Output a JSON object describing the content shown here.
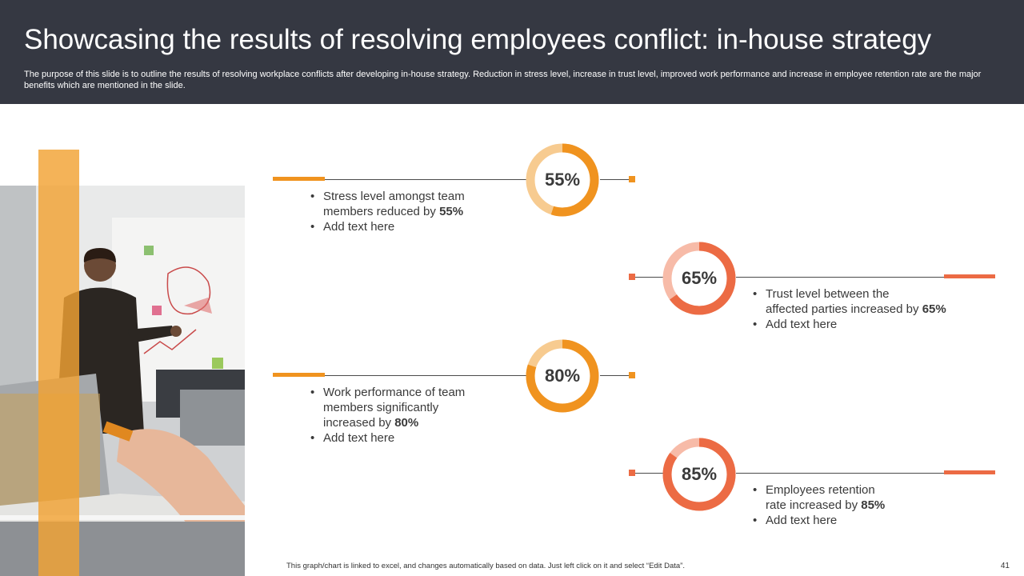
{
  "header": {
    "title": "Showcasing the results of resolving employees conflict: in-house strategy",
    "subtitle": "The purpose of this slide is to outline the results of resolving workplace conflicts after developing in-house strategy. Reduction in stress level, increase in trust level, improved work performance and increase in employee retention rate are the major benefits which are mentioned in the slide."
  },
  "colors": {
    "orange": "#F0931F",
    "coral": "#EC6B44",
    "orange_light": "#F7CB90",
    "coral_light": "#F7BBA8",
    "header_bg": "#353842"
  },
  "items": [
    {
      "percent": 55,
      "label": "55%",
      "line1_pre": "Stress level amongst team",
      "line2_pre": "members reduced by ",
      "line2_bold": "55%",
      "add": "Add text here",
      "color": "orange"
    },
    {
      "percent": 65,
      "label": "65%",
      "line1_pre": "Trust level between the",
      "line2_pre": "affected parties increased by ",
      "line2_bold": "65%",
      "add": "Add text here",
      "color": "coral"
    },
    {
      "percent": 80,
      "label": "80%",
      "line1_pre": "Work performance of team",
      "line2_pre": "members significantly",
      "line3_pre": "increased by ",
      "line3_bold": "80%",
      "add": "Add text here",
      "color": "orange"
    },
    {
      "percent": 85,
      "label": "85%",
      "line1_pre": "Employees retention",
      "line2_pre": "rate increased by ",
      "line2_bold": "85%",
      "add": "Add text here",
      "color": "coral"
    }
  ],
  "footer": {
    "note": "This graph/chart is linked to excel, and changes automatically based on data. Just left click on it and select “Edit Data”.",
    "page": "41"
  }
}
